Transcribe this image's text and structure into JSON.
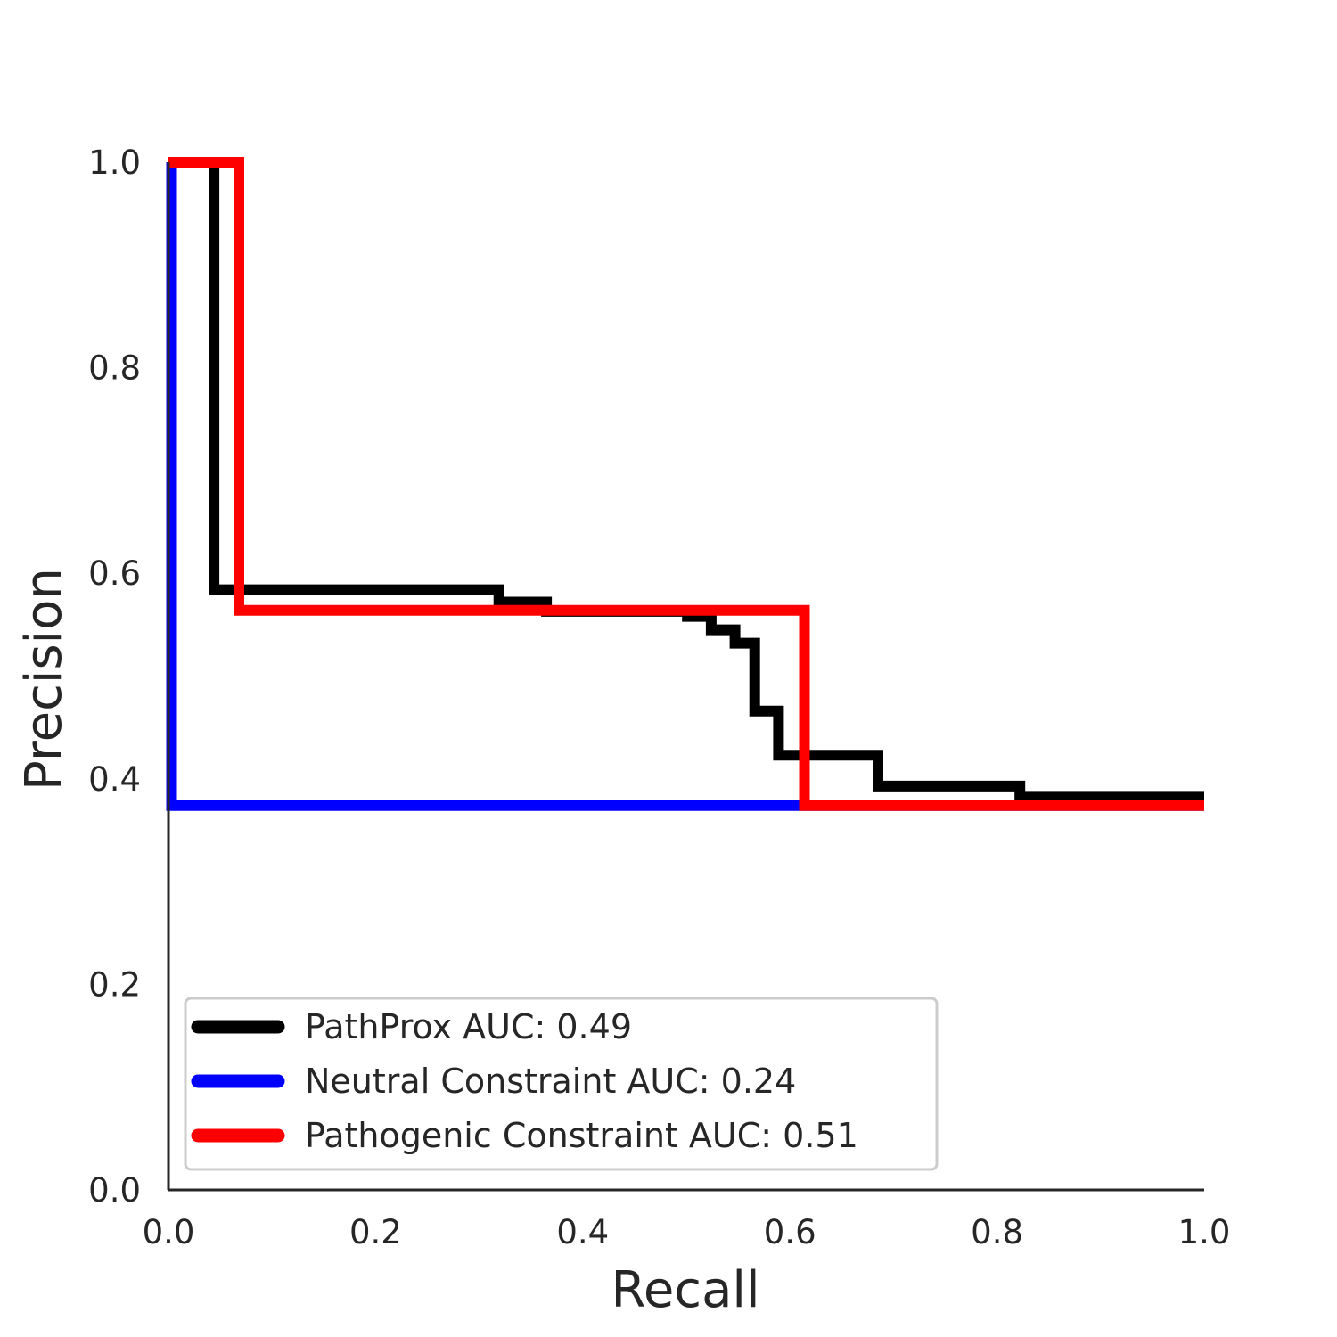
{
  "chart_data": {
    "type": "line",
    "step": true,
    "title": "",
    "xlabel": "Recall",
    "ylabel": "Precision",
    "xlim": [
      0.0,
      1.0
    ],
    "ylim": [
      0.0,
      1.0
    ],
    "xticks": [
      "0.0",
      "0.2",
      "0.4",
      "0.6",
      "0.8",
      "1.0"
    ],
    "yticks": [
      "0.0",
      "0.2",
      "0.4",
      "0.6",
      "0.8",
      "1.0"
    ],
    "grid": false,
    "legend_position": "lower-left",
    "series": [
      {
        "name": "PathProx AUC:  0.49",
        "color": "#000000",
        "points": [
          [
            0.044,
            1.0
          ],
          [
            0.044,
            0.584
          ],
          [
            0.319,
            0.584
          ],
          [
            0.319,
            0.572
          ],
          [
            0.365,
            0.572
          ],
          [
            0.365,
            0.563
          ],
          [
            0.501,
            0.563
          ],
          [
            0.501,
            0.558
          ],
          [
            0.524,
            0.558
          ],
          [
            0.524,
            0.545
          ],
          [
            0.547,
            0.545
          ],
          [
            0.547,
            0.532
          ],
          [
            0.566,
            0.532
          ],
          [
            0.566,
            0.466
          ],
          [
            0.589,
            0.466
          ],
          [
            0.589,
            0.423
          ],
          [
            0.685,
            0.423
          ],
          [
            0.685,
            0.393
          ],
          [
            0.822,
            0.393
          ],
          [
            0.822,
            0.383
          ],
          [
            1.0,
            0.383
          ]
        ]
      },
      {
        "name": "Neutral Constraint AUC:  0.24",
        "color": "#0000ff",
        "points": [
          [
            0.003,
            1.0
          ],
          [
            0.003,
            0.374
          ],
          [
            1.0,
            0.374
          ]
        ]
      },
      {
        "name": "Pathogenic Constraint AUC:  0.51",
        "color": "#ff0000",
        "points": [
          [
            0.0,
            1.0
          ],
          [
            0.068,
            1.0
          ],
          [
            0.068,
            0.564
          ],
          [
            0.614,
            0.564
          ],
          [
            0.614,
            0.374
          ],
          [
            1.0,
            0.374
          ]
        ]
      }
    ]
  }
}
